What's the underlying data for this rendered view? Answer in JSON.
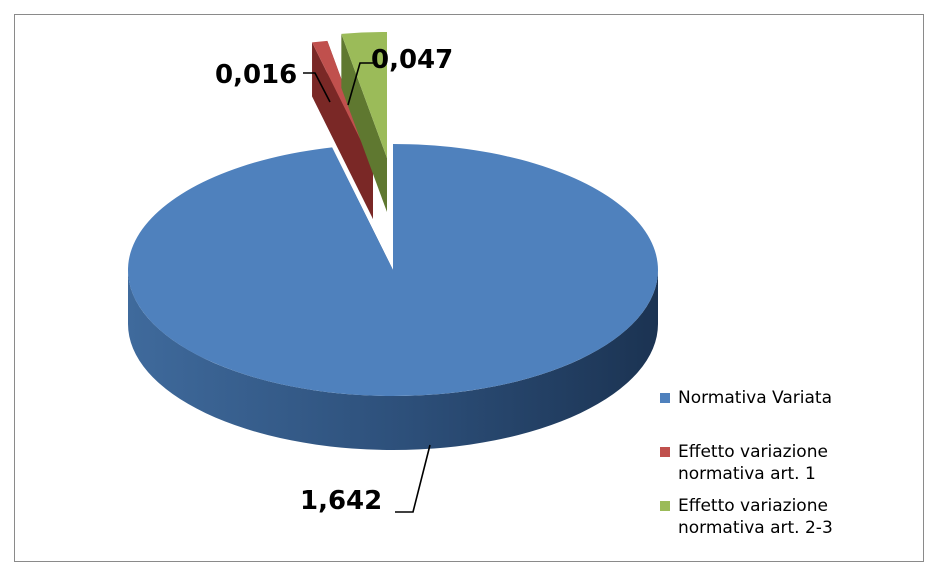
{
  "chart_data": {
    "type": "pie",
    "style": "3d-exploded",
    "categories": [
      "Normativa Variata",
      "Effetto variazione normativa art. 1",
      "Effetto variazione normativa art. 2-3"
    ],
    "values": [
      1.642,
      0.016,
      0.047
    ],
    "value_labels": [
      "1,642",
      "0,016",
      "0,047"
    ],
    "colors": [
      "#4f81bd",
      "#c0504d",
      "#9bbb59"
    ],
    "legend_position": "right"
  }
}
